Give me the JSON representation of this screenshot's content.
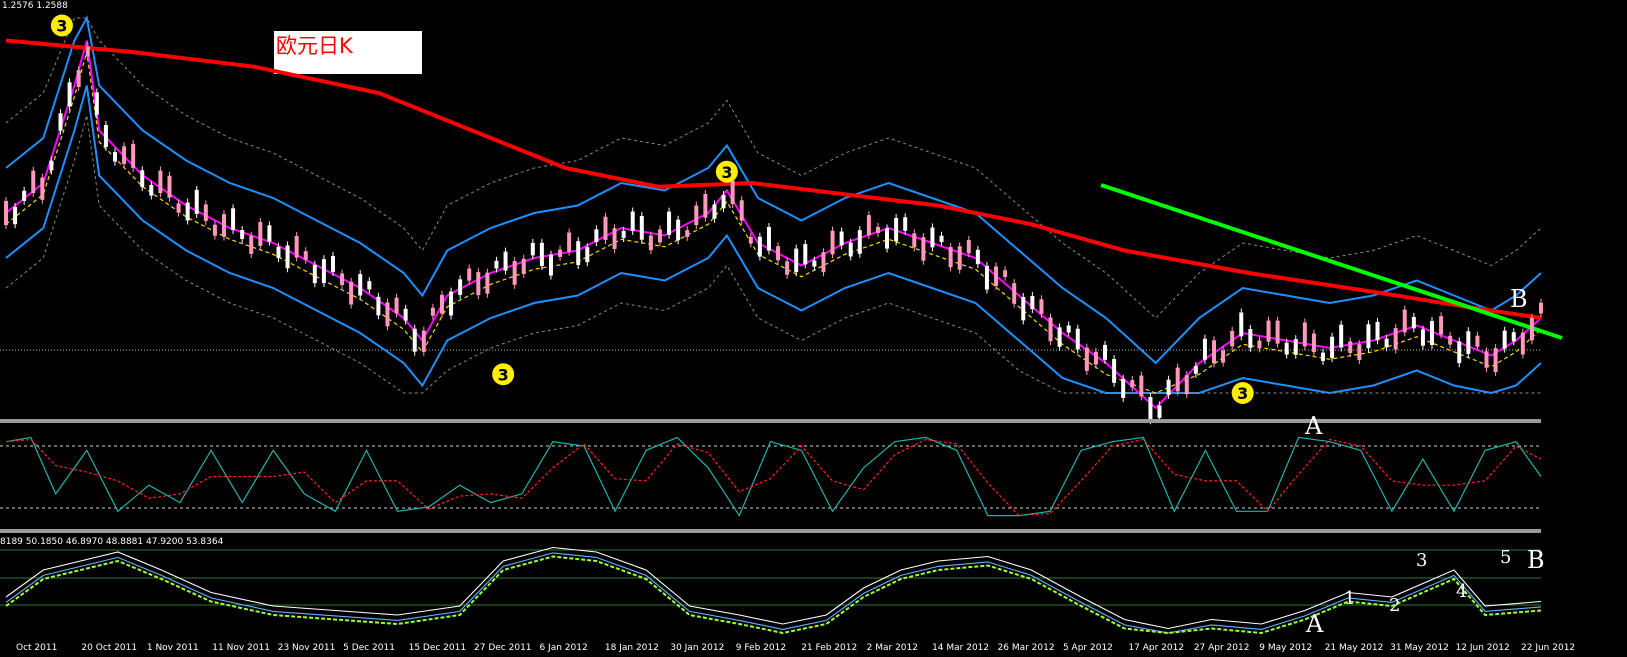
{
  "header": {
    "price_readout": "1.2576 1.2588",
    "title_box": "欧元日K"
  },
  "panels": {
    "stoch_readout": "8189 50.1850 46.8970 48.8881 47.9200 53.8364"
  },
  "annotations": {
    "wave_3": "3",
    "label_A": "A",
    "label_B": "B",
    "wave_1": "1",
    "wave_2": "2",
    "wave_3b": "3",
    "wave_4": "4",
    "wave_5": "5"
  },
  "colors": {
    "background": "#000000",
    "ma_long": "#ff0000",
    "trendline": "#00ff00",
    "ma_blue": "#1e90ff",
    "ma_magenta": "#ff00ff",
    "ma_yellow": "#ffd700",
    "oscillator_main": "#20b2aa",
    "oscillator_signal": "#ff2222",
    "candle_up": "#ffffff",
    "candle_down": "#ff99bb",
    "divider": "#9a9a9a",
    "marker_yellow": "#ffee00",
    "marker_orange": "#cc7722",
    "marker_magenta": "#cc2288"
  },
  "chart_data": {
    "type": "line",
    "symbol_title": "欧元日K",
    "x_tick_labels": [
      "Oct 2011",
      "20 Oct 2011",
      "1 Nov 2011",
      "11 Nov 2011",
      "23 Nov 2011",
      "5 Dec 2011",
      "15 Dec 2011",
      "27 Dec 2011",
      "6 Jan 2012",
      "18 Jan 2012",
      "30 Jan 2012",
      "9 Feb 2012",
      "21 Feb 2012",
      "2 Mar 2012",
      "14 Mar 2012",
      "26 Mar 2012",
      "5 Apr 2012",
      "17 Apr 2012",
      "27 Apr 2012",
      "9 May 2012",
      "21 May 2012",
      "31 May 2012",
      "12 Jun 2012",
      "22 Jun 2012"
    ],
    "price_path": [
      [
        0,
        0.52
      ],
      [
        12,
        0.44
      ],
      [
        22,
        0.18
      ],
      [
        26,
        0.06
      ],
      [
        30,
        0.3
      ],
      [
        44,
        0.42
      ],
      [
        58,
        0.5
      ],
      [
        72,
        0.56
      ],
      [
        86,
        0.6
      ],
      [
        100,
        0.66
      ],
      [
        114,
        0.72
      ],
      [
        128,
        0.8
      ],
      [
        134,
        0.86
      ],
      [
        142,
        0.74
      ],
      [
        156,
        0.68
      ],
      [
        170,
        0.64
      ],
      [
        184,
        0.62
      ],
      [
        198,
        0.56
      ],
      [
        212,
        0.58
      ],
      [
        226,
        0.52
      ],
      [
        232,
        0.46
      ],
      [
        242,
        0.6
      ],
      [
        256,
        0.66
      ],
      [
        270,
        0.6
      ],
      [
        284,
        0.56
      ],
      [
        298,
        0.6
      ],
      [
        312,
        0.64
      ],
      [
        326,
        0.74
      ],
      [
        340,
        0.84
      ],
      [
        354,
        0.92
      ],
      [
        370,
        1.04
      ],
      [
        384,
        0.92
      ],
      [
        398,
        0.84
      ],
      [
        412,
        0.86
      ],
      [
        426,
        0.88
      ],
      [
        440,
        0.86
      ],
      [
        454,
        0.82
      ],
      [
        466,
        0.86
      ],
      [
        478,
        0.9
      ],
      [
        486,
        0.86
      ],
      [
        494,
        0.8
      ]
    ],
    "ma_long_path": [
      [
        0,
        0.06
      ],
      [
        40,
        0.09
      ],
      [
        80,
        0.13
      ],
      [
        120,
        0.2
      ],
      [
        150,
        0.3
      ],
      [
        180,
        0.4
      ],
      [
        210,
        0.45
      ],
      [
        240,
        0.44
      ],
      [
        270,
        0.47
      ],
      [
        300,
        0.5
      ],
      [
        330,
        0.55
      ],
      [
        360,
        0.62
      ],
      [
        400,
        0.68
      ],
      [
        440,
        0.73
      ],
      [
        470,
        0.77
      ],
      [
        494,
        0.8
      ]
    ],
    "oscillator_path": [
      [
        0,
        0.1
      ],
      [
        8,
        0.05
      ],
      [
        16,
        0.7
      ],
      [
        26,
        0.2
      ],
      [
        36,
        0.9
      ],
      [
        46,
        0.6
      ],
      [
        56,
        0.8
      ],
      [
        66,
        0.2
      ],
      [
        76,
        0.8
      ],
      [
        86,
        0.2
      ],
      [
        96,
        0.7
      ],
      [
        106,
        0.9
      ],
      [
        116,
        0.2
      ],
      [
        126,
        0.9
      ],
      [
        136,
        0.85
      ],
      [
        146,
        0.6
      ],
      [
        156,
        0.8
      ],
      [
        166,
        0.7
      ],
      [
        176,
        0.1
      ],
      [
        186,
        0.15
      ],
      [
        196,
        0.9
      ],
      [
        206,
        0.2
      ],
      [
        216,
        0.05
      ],
      [
        226,
        0.4
      ],
      [
        236,
        0.95
      ],
      [
        246,
        0.1
      ],
      [
        256,
        0.2
      ],
      [
        266,
        0.9
      ],
      [
        276,
        0.4
      ],
      [
        286,
        0.1
      ],
      [
        296,
        0.05
      ],
      [
        306,
        0.2
      ],
      [
        316,
        0.95
      ],
      [
        326,
        0.95
      ],
      [
        336,
        0.9
      ],
      [
        346,
        0.2
      ],
      [
        356,
        0.1
      ],
      [
        366,
        0.05
      ],
      [
        376,
        0.9
      ],
      [
        386,
        0.2
      ],
      [
        396,
        0.9
      ],
      [
        406,
        0.9
      ],
      [
        416,
        0.05
      ],
      [
        426,
        0.1
      ],
      [
        436,
        0.2
      ],
      [
        446,
        0.9
      ],
      [
        456,
        0.3
      ],
      [
        466,
        0.9
      ],
      [
        476,
        0.2
      ],
      [
        486,
        0.1
      ],
      [
        494,
        0.5
      ]
    ],
    "stoch_path": [
      [
        0,
        0.6
      ],
      [
        12,
        0.3
      ],
      [
        24,
        0.2
      ],
      [
        36,
        0.1
      ],
      [
        50,
        0.3
      ],
      [
        66,
        0.55
      ],
      [
        86,
        0.7
      ],
      [
        106,
        0.75
      ],
      [
        126,
        0.8
      ],
      [
        146,
        0.7
      ],
      [
        160,
        0.2
      ],
      [
        176,
        0.05
      ],
      [
        190,
        0.1
      ],
      [
        206,
        0.3
      ],
      [
        220,
        0.7
      ],
      [
        236,
        0.8
      ],
      [
        250,
        0.9
      ],
      [
        264,
        0.8
      ],
      [
        276,
        0.5
      ],
      [
        288,
        0.3
      ],
      [
        300,
        0.2
      ],
      [
        316,
        0.15
      ],
      [
        330,
        0.3
      ],
      [
        346,
        0.6
      ],
      [
        360,
        0.85
      ],
      [
        374,
        0.95
      ],
      [
        388,
        0.85
      ],
      [
        404,
        0.9
      ],
      [
        418,
        0.75
      ],
      [
        432,
        0.55
      ],
      [
        446,
        0.6
      ],
      [
        456,
        0.45
      ],
      [
        466,
        0.3
      ],
      [
        476,
        0.7
      ],
      [
        494,
        0.65
      ]
    ],
    "wave_markers": [
      {
        "x": 18,
        "y_norm": 0.02,
        "label": "3"
      },
      {
        "x": 160,
        "y_norm": 0.95,
        "label": "3"
      },
      {
        "x": 232,
        "y_norm": 0.41,
        "label": "3"
      },
      {
        "x": 398,
        "y_norm": 1.0,
        "label": "3"
      }
    ]
  }
}
